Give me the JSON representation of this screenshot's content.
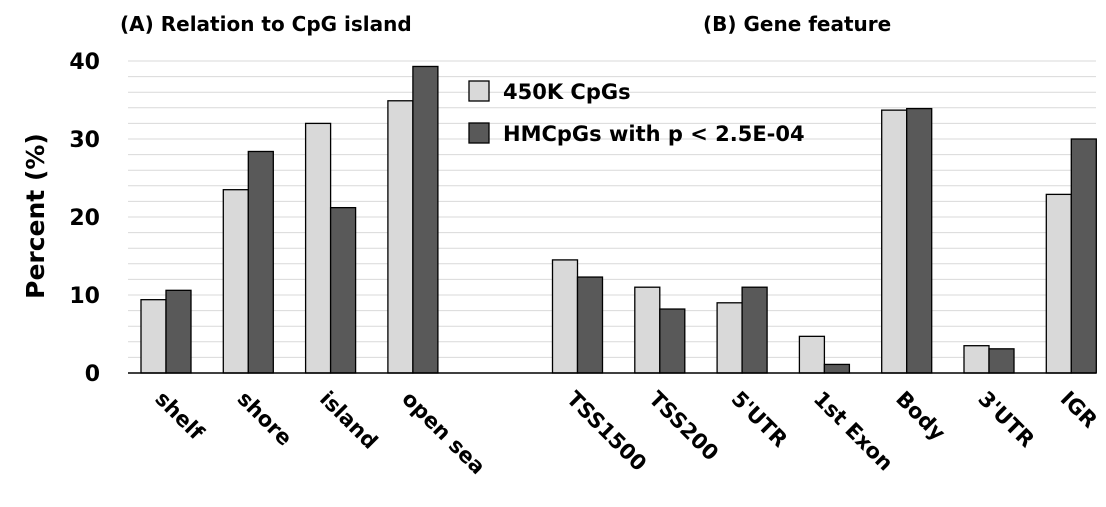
{
  "chart_data": {
    "type": "bar",
    "ylabel": "Percent (%)",
    "ylim": [
      0,
      40
    ],
    "yticks": [
      "0",
      "10",
      "20",
      "30",
      "40"
    ],
    "grid": true,
    "legend_position": "top-center",
    "colors": {
      "450K CpGs": "#d9d9d9",
      "HMCpGs with p < 2.5E-04": "#595959",
      "grid": "#d9d9d9",
      "axis": "#000000"
    },
    "panels": [
      {
        "title": "(A) Relation to CpG island",
        "categories": [
          "shelf",
          "shore",
          "island",
          "open sea"
        ],
        "series": [
          {
            "name": "450K CpGs",
            "values": [
              9.4,
              23.5,
              32.0,
              34.9
            ]
          },
          {
            "name": "HMCpGs with p < 2.5E-04",
            "values": [
              10.6,
              28.4,
              21.2,
              39.3
            ]
          }
        ]
      },
      {
        "title": "(B) Gene feature",
        "categories": [
          "TSS1500",
          "TSS200",
          "5'UTR",
          "1st Exon",
          "Body",
          "3'UTR",
          "IGR"
        ],
        "series": [
          {
            "name": "450K CpGs",
            "values": [
              14.5,
              11.0,
              9.0,
              4.7,
              33.7,
              3.5,
              22.9
            ]
          },
          {
            "name": "HMCpGs with p < 2.5E-04",
            "values": [
              12.3,
              8.2,
              11.0,
              1.1,
              33.9,
              3.1,
              30.0
            ]
          }
        ]
      }
    ]
  }
}
